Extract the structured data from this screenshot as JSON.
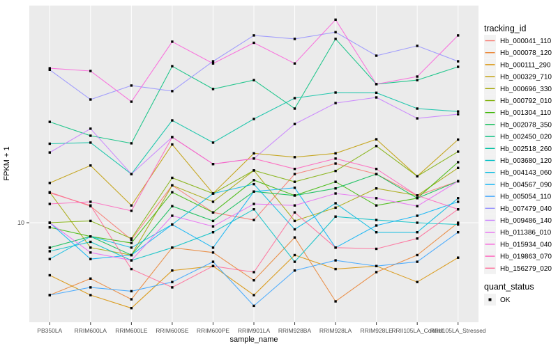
{
  "colors": {
    "panel_bg": "#EBEBEB",
    "gridline": "#FFFFFF",
    "tick_text": "#4D4D4D",
    "axis_title_text": "#000000",
    "legend_key_bg": "#F2F2F2",
    "marker_color": "#000000"
  },
  "legend": {
    "title": "tracking_id"
  },
  "quant_status": {
    "title": "quant_status",
    "items": [
      "OK"
    ]
  },
  "chart_data": {
    "type": "line",
    "title": "",
    "xlabel": "sample_name",
    "ylabel": "FPKM + 1",
    "y_scale": "log10",
    "y_ticks": [
      10
    ],
    "ylim": [
      3.5,
      110
    ],
    "grid": "major-white-on-grey",
    "legend_position": "right",
    "marker": {
      "shape": "square",
      "color": "#000000"
    },
    "categories": [
      "PB350LA",
      "RRIM600LA",
      "RRIM600LE",
      "RRIM600SE",
      "RRIM600PE",
      "RRIM901LA",
      "RRIM928BA",
      "RRIM928LA",
      "RRIM928LE",
      "RRII105LA_Control",
      "RRII105LA_Stressed"
    ],
    "series": [
      {
        "name": "Hb_000041_110",
        "color": "#F8766D",
        "values": [
          14.0,
          12.0,
          8.3,
          15.1,
          11.2,
          10.3,
          17.1,
          19.2,
          17.1,
          13.5,
          15.8
        ]
      },
      {
        "name": "Hb_000078_120",
        "color": "#EA8331",
        "values": [
          4.5,
          5.4,
          4.3,
          7.6,
          7.2,
          5.3,
          8.5,
          4.2,
          5.8,
          7.0,
          10.0
        ]
      },
      {
        "name": "Hb_000111_290",
        "color": "#D89000",
        "values": [
          5.6,
          4.5,
          3.9,
          5.9,
          6.2,
          4.5,
          7.0,
          6.0,
          6.2,
          5.2,
          6.8
        ]
      },
      {
        "name": "Hb_000329_710",
        "color": "#C09B00",
        "values": [
          15.5,
          18.8,
          12.1,
          23.7,
          13.8,
          21.5,
          20.6,
          21.5,
          25.1,
          16.7,
          25.0
        ]
      },
      {
        "name": "Hb_000696_330",
        "color": "#A3A500",
        "values": [
          14.0,
          7.6,
          7.0,
          15.1,
          12.6,
          17.8,
          10.2,
          11.8,
          14.6,
          13.5,
          18.3
        ]
      },
      {
        "name": "Hb_000792_010",
        "color": "#7CAE00",
        "values": [
          10.0,
          10.2,
          8.4,
          16.4,
          13.8,
          17.8,
          15.7,
          17.7,
          23.3,
          16.7,
          21.9
        ]
      },
      {
        "name": "Hb_001304_110",
        "color": "#39B600",
        "values": [
          9.5,
          8.6,
          8.0,
          14.0,
          11.2,
          16.0,
          13.5,
          15.7,
          12.1,
          13.1,
          19.5
        ]
      },
      {
        "name": "Hb_002078_350",
        "color": "#00BB4E",
        "values": [
          7.6,
          8.6,
          7.0,
          12.0,
          10.2,
          14.1,
          13.5,
          14.6,
          17.1,
          13.1,
          15.8
        ]
      },
      {
        "name": "Hb_002450_020",
        "color": "#00BF7D",
        "values": [
          30.4,
          26.1,
          24.0,
          56.2,
          43.7,
          48.2,
          35.2,
          75.9,
          46.1,
          48.2,
          55.8
        ]
      },
      {
        "name": "Hb_002518_260",
        "color": "#00C1A3",
        "values": [
          23.9,
          24.2,
          17.1,
          30.9,
          24.2,
          31.4,
          39.5,
          42.0,
          41.9,
          35.2,
          34.1
        ]
      },
      {
        "name": "Hb_003680_120",
        "color": "#00BFC4",
        "values": [
          7.3,
          8.1,
          6.6,
          7.6,
          9.0,
          11.6,
          6.5,
          10.7,
          10.3,
          10.0,
          9.8
        ]
      },
      {
        "name": "Hb_004143_060",
        "color": "#00BAE0",
        "values": [
          6.7,
          8.6,
          7.6,
          9.8,
          13.8,
          15.3,
          9.3,
          12.4,
          9.0,
          9.0,
          13.1
        ]
      },
      {
        "name": "Hb_004567_090",
        "color": "#00B0F6",
        "values": [
          10.0,
          6.7,
          7.0,
          9.8,
          7.6,
          14.1,
          14.7,
          7.6,
          9.7,
          10.8,
          12.6
        ]
      },
      {
        "name": "Hb_005054_110",
        "color": "#35A2FF",
        "values": [
          4.5,
          4.9,
          4.7,
          5.2,
          6.5,
          4.0,
          5.9,
          6.6,
          6.2,
          6.5,
          9.0
        ]
      },
      {
        "name": "Hb_007479_040",
        "color": "#9590FF",
        "values": [
          54.0,
          38.9,
          45.4,
          42.7,
          59.3,
          78.9,
          75.9,
          81.8,
          63.1,
          70.3,
          59.3
        ]
      },
      {
        "name": "Hb_009486_140",
        "color": "#C77CFF",
        "values": [
          21.7,
          28.2,
          17.1,
          25.7,
          19.1,
          20.3,
          29.7,
          37.4,
          39.8,
          31.6,
          33.1
        ]
      },
      {
        "name": "Hb_011386_010",
        "color": "#E76BF3",
        "values": [
          10.0,
          7.2,
          6.6,
          10.8,
          9.6,
          12.3,
          12.1,
          13.8,
          13.1,
          12.0,
          15.8
        ]
      },
      {
        "name": "Hb_015934_040",
        "color": "#FA62DB",
        "values": [
          54.9,
          53.3,
          38.0,
          73.6,
          57.9,
          72.7,
          57.9,
          93.8,
          46.1,
          50.1,
          78.9
        ]
      },
      {
        "name": "Hb_019863_070",
        "color": "#FF62BC",
        "values": [
          12.3,
          12.6,
          11.4,
          25.7,
          19.1,
          20.3,
          18.1,
          20.3,
          18.1,
          13.5,
          11.6
        ]
      },
      {
        "name": "Hb_156279_020",
        "color": "#FF6A98",
        "values": [
          13.9,
          12.1,
          6.0,
          4.9,
          6.2,
          5.8,
          11.2,
          7.6,
          7.5,
          8.4,
          11.6
        ]
      }
    ]
  }
}
